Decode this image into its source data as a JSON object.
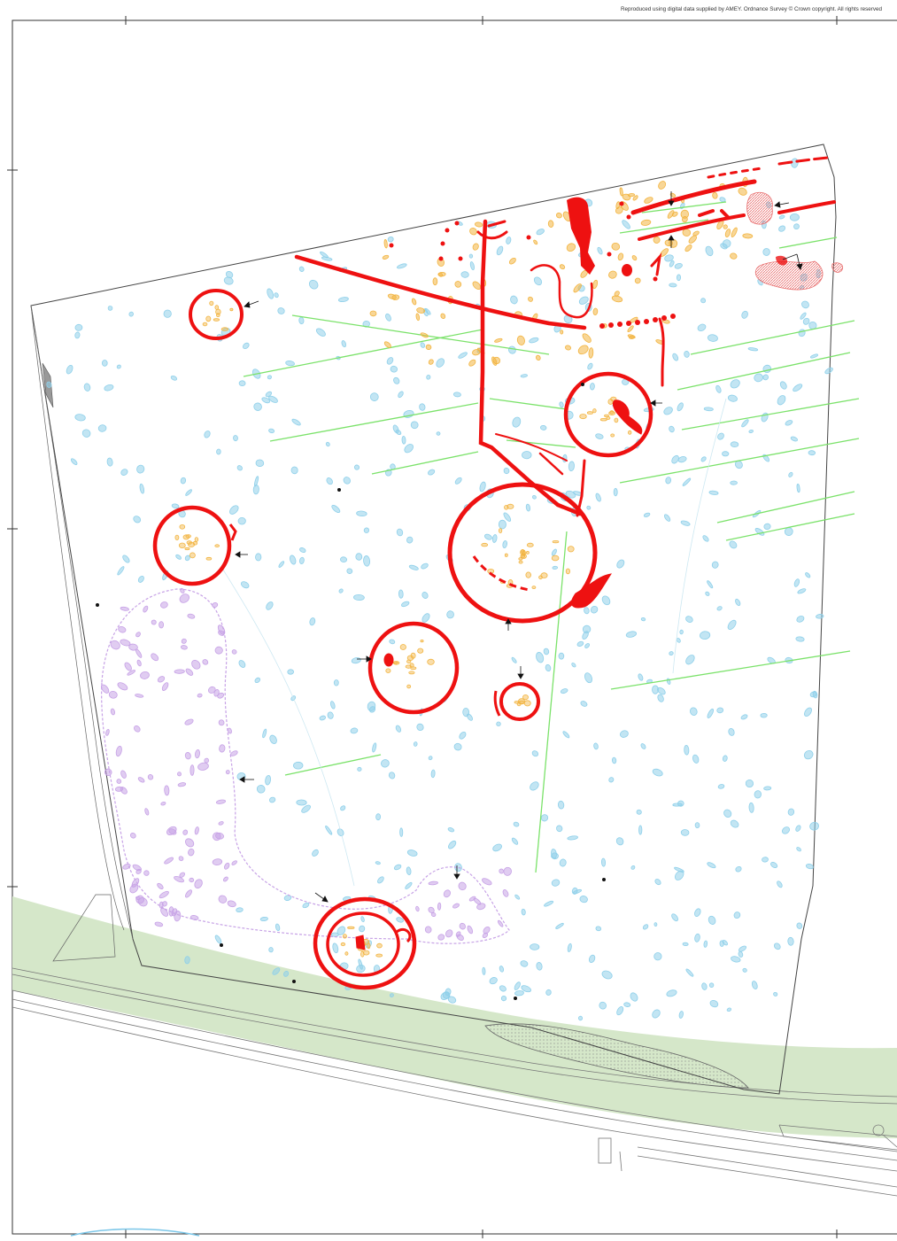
{
  "copyright": "Reproduced using digital data supplied by AMEY. Ordnance Survey © Crown copyright. All rights reserved",
  "colors": {
    "background": "#ffffff",
    "cut_features": "#ee1111",
    "pits_cyan": "#8fd0ea",
    "pits_orange": "#f2b440",
    "pits_purple": "#c7a2e6",
    "modern_green": "#7be26a",
    "road_band": "#d5e7c9",
    "site_outline": "#555555",
    "hatched_red": "#f08a8a"
  },
  "legend_features": [
    "site-boundary",
    "road-corridor",
    "roundhouse-ring-ditches",
    "enclosure-ditches",
    "pits-and-postholes",
    "furrows",
    "spot-markers",
    "pointer-arrows"
  ]
}
